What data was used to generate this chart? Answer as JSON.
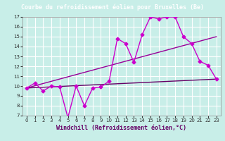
{
  "title": "Courbe du refroidissement éolien pour Bruxelles (Be)",
  "xlabel": "Windchill (Refroidissement éolien,°C)",
  "background_color": "#c8eee8",
  "grid_color": "#ffffff",
  "line_color": "#990099",
  "line_color2": "#cc00cc",
  "line_color3": "#660066",
  "title_bg": "#660066",
  "title_fg": "#ffffff",
  "xlim": [
    -0.5,
    23.5
  ],
  "ylim": [
    7,
    17
  ],
  "xticks": [
    0,
    1,
    2,
    3,
    4,
    5,
    6,
    7,
    8,
    9,
    10,
    11,
    12,
    13,
    14,
    15,
    16,
    17,
    18,
    19,
    20,
    21,
    22,
    23
  ],
  "yticks": [
    7,
    8,
    9,
    10,
    11,
    12,
    13,
    14,
    15,
    16,
    17
  ],
  "line1_x": [
    0,
    1,
    2,
    3,
    4,
    5,
    6,
    7,
    8,
    9,
    10,
    11,
    12,
    13,
    14,
    15,
    16,
    17,
    18,
    19,
    20,
    21,
    22,
    23
  ],
  "line1_y": [
    9.8,
    10.3,
    9.5,
    10.0,
    9.9,
    6.8,
    10.0,
    8.0,
    9.8,
    9.9,
    10.5,
    14.8,
    14.3,
    12.4,
    15.2,
    17.0,
    16.8,
    17.0,
    17.0,
    15.0,
    14.3,
    12.5,
    12.1,
    10.7
  ],
  "line2_x": [
    0,
    23
  ],
  "line2_y": [
    9.8,
    15.0
  ],
  "line3_x": [
    0,
    23
  ],
  "line3_y": [
    9.8,
    10.7
  ],
  "marker": "D",
  "markersize": 2.5,
  "linewidth": 1.0,
  "title_fontsize": 6,
  "tick_fontsize": 5,
  "xlabel_fontsize": 6
}
